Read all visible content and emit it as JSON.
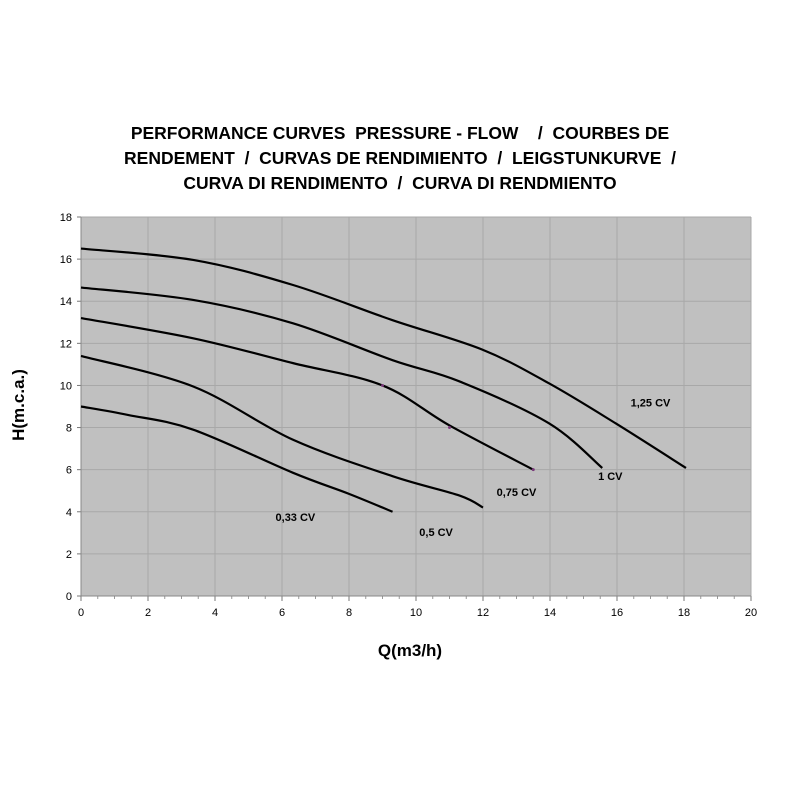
{
  "chart_data": {
    "type": "line",
    "title": [
      "PERFORMANCE CURVES  PRESSURE - FLOW    /  COURBES DE",
      "RENDEMENT  /  CURVAS DE RENDIMIENTO  /  LEIGSTUNKURVE  /",
      "CURVA DI RENDIMENTO  /  CURVA DI RENDMIENTO"
    ],
    "xlabel": "Q(m3/h)",
    "ylabel": "H(m.c.a.)",
    "xlim": [
      0,
      20
    ],
    "ylim": [
      0,
      18
    ],
    "xticks": [
      0,
      2,
      4,
      6,
      8,
      10,
      12,
      14,
      16,
      18,
      20
    ],
    "yticks": [
      0,
      2,
      4,
      6,
      8,
      10,
      12,
      14,
      16,
      18
    ],
    "grid": true,
    "plot_background": "#c0c0c0",
    "grid_color": "#a8a8a8",
    "line_color": "#000000",
    "series": [
      {
        "name": "0,33 CV",
        "label_at": [
          6.4,
          3.75
        ],
        "points": [
          [
            0,
            9.0
          ],
          [
            1.4,
            8.6
          ],
          [
            3.35,
            7.9
          ],
          [
            6.33,
            5.85
          ],
          [
            8.0,
            4.85
          ],
          [
            9.3,
            4.0
          ]
        ]
      },
      {
        "name": "0,5 CV",
        "label_at": [
          10.6,
          3.05
        ],
        "points": [
          [
            0,
            11.4
          ],
          [
            3.35,
            9.95
          ],
          [
            6.33,
            7.42
          ],
          [
            9.3,
            5.69
          ],
          [
            11.3,
            4.77
          ],
          [
            12.0,
            4.2
          ]
        ]
      },
      {
        "name": "0,75 CV",
        "label_at": [
          13.0,
          4.95
        ],
        "points": [
          [
            0,
            13.2
          ],
          [
            3.35,
            12.24
          ],
          [
            6.33,
            11.06
          ],
          [
            9.0,
            10.0
          ],
          [
            11.0,
            8.1
          ],
          [
            13.5,
            6.0
          ]
        ]
      },
      {
        "name": "1 CV",
        "label_at": [
          15.8,
          5.7
        ],
        "points": [
          [
            0,
            14.65
          ],
          [
            3.35,
            14.06
          ],
          [
            6.33,
            12.95
          ],
          [
            9.3,
            11.2
          ],
          [
            11.3,
            10.19
          ],
          [
            13.97,
            8.2
          ],
          [
            15.56,
            6.08
          ]
        ]
      },
      {
        "name": "1,25 CV",
        "label_at": [
          17.0,
          9.2
        ],
        "points": [
          [
            0,
            16.5
          ],
          [
            3.35,
            15.96
          ],
          [
            6.33,
            14.77
          ],
          [
            9.3,
            13.1
          ],
          [
            11.98,
            11.7
          ],
          [
            13.97,
            10.1
          ],
          [
            15.96,
            8.2
          ],
          [
            18.06,
            6.08
          ]
        ]
      }
    ],
    "markers": {
      "color": "#7a3a7a",
      "points": [
        [
          9,
          10
        ],
        [
          11,
          8
        ],
        [
          13.5,
          6
        ]
      ]
    }
  }
}
